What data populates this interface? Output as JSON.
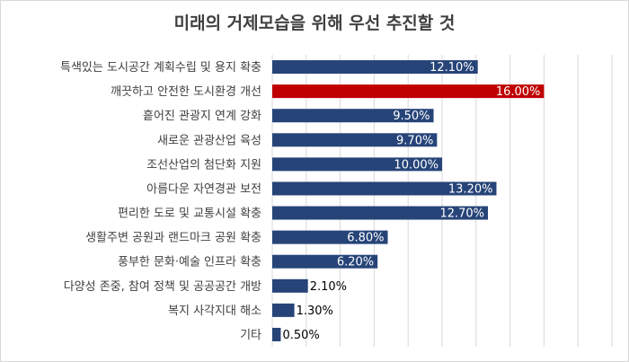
{
  "chart_data": {
    "type": "bar",
    "orientation": "horizontal",
    "title": "미래의 거제모습을 위해 우선 추진할 것",
    "xlabel": "",
    "ylabel": "",
    "xlim": [
      0,
      20
    ],
    "grid": true,
    "legend": "none",
    "categories": [
      "특색있는 도시공간 계획수립 및 용지 확충",
      "깨끗하고 안전한 도시환경 개선",
      "흩어진 관광지 연계 강화",
      "새로운 관광산업 육성",
      "조선산업의 첨단화 지원",
      "아름다운 자연경관 보전",
      "편리한 도로 및 교통시설 확충",
      "생활주변 공원과 랜드마크 공원 확충",
      "풍부한 문화·예술 인프라 확충",
      "다양성 존중, 참여 정책 및 공공공간 개방",
      "복지 사각지대 해소",
      "기타"
    ],
    "values": [
      12.1,
      16.0,
      9.5,
      9.7,
      10.0,
      13.2,
      12.7,
      6.8,
      6.2,
      2.1,
      1.3,
      0.5
    ],
    "labels": [
      "12.10%",
      "16.00%",
      "9.50%",
      "9.70%",
      "10.00%",
      "13.20%",
      "12.70%",
      "6.80%",
      "6.20%",
      "2.10%",
      "1.30%",
      "0.50%"
    ],
    "highlight_index": 1,
    "colors": {
      "bar": "#264478",
      "highlight": "#C00000",
      "grid": "#d9d9d9",
      "text": "#404040",
      "label_inside": "#ffffff",
      "label_outside": "#000000"
    }
  }
}
